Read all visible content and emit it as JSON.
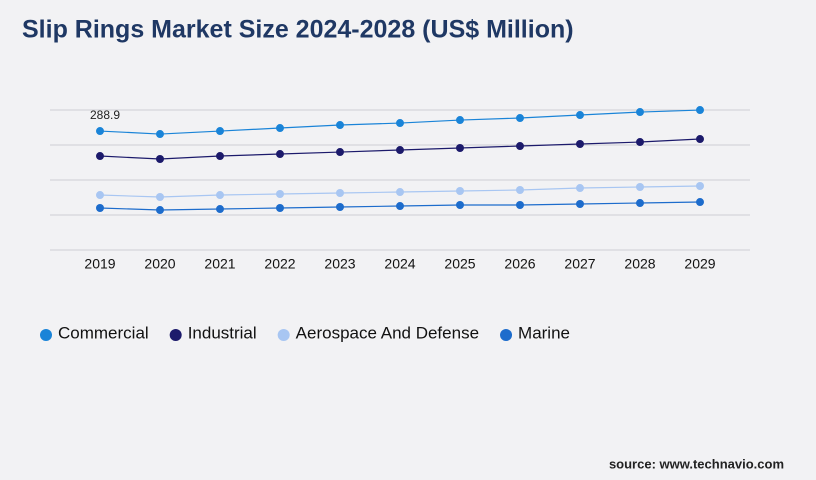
{
  "chart_data": {
    "type": "line",
    "title": "Slip Rings Market Size 2024-2028 (US$ Million)",
    "categories": [
      "2019",
      "2020",
      "2021",
      "2022",
      "2023",
      "2024",
      "2025",
      "2026",
      "2027",
      "2028",
      "2029"
    ],
    "series": [
      {
        "name": "Commercial",
        "color": "#1a84d8",
        "values": [
          288.9,
          281.6,
          288.9,
          296.2,
          303.5,
          308.3,
          315.6,
          320.5,
          327.8,
          335.0,
          339.9
        ]
      },
      {
        "name": "Industrial",
        "color": "#1c1a6b",
        "values": [
          228.2,
          221.0,
          228.2,
          233.1,
          237.9,
          242.8,
          247.7,
          252.5,
          257.4,
          262.2,
          269.5
        ]
      },
      {
        "name": "Aerospace And Defense",
        "color": "#a8c6f2",
        "values": [
          133.5,
          128.7,
          133.5,
          136.0,
          138.4,
          140.8,
          143.3,
          145.7,
          150.5,
          153.0,
          155.4
        ]
      },
      {
        "name": "Marine",
        "color": "#1d6ccc",
        "values": [
          102.0,
          97.1,
          99.5,
          102.0,
          104.4,
          106.8,
          109.3,
          109.3,
          111.7,
          114.1,
          116.5
        ]
      }
    ],
    "ylim": [
      0,
      340
    ],
    "yticks": [
      0,
      85,
      170,
      255,
      340
    ],
    "grid": true,
    "show_tick_labels": false,
    "labeled_points": [
      [
        0,
        0
      ]
    ],
    "legend": "bottom",
    "source": "source: www.technavio.com"
  }
}
